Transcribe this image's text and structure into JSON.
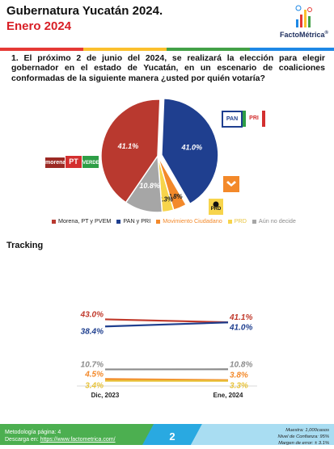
{
  "header": {
    "title": "Gubernatura Yucatán 2024.",
    "subtitle": "Enero 2024",
    "brand": "FactoMétrica",
    "brand_mark": "®"
  },
  "question": "1. El próximo 2 de junio del 2024, se realizará la elección para elegir gobernador en el estado de Yucatán, en un escenario de coaliciones conformadas de la siguiente manera ¿usted por quién votaría?",
  "badges": {
    "morena": "morena",
    "pt": "PT",
    "verde": "VERDE",
    "pan": "PAN",
    "pri": "PRI",
    "prd": "PRD"
  },
  "chart_data": [
    {
      "type": "pie",
      "slices": [
        {
          "name": "PAN y PRI",
          "value": 41.0,
          "label": "41.0%",
          "color": "#1f3f8f"
        },
        {
          "name": "Movimiento Ciudadano",
          "value": 3.8,
          "label": "3.8%",
          "color": "#f3892a"
        },
        {
          "name": "PRD",
          "value": 3.3,
          "label": "3.3%",
          "color": "#f7d44b"
        },
        {
          "name": "Aún no decide",
          "value": 10.8,
          "label": "10.8%",
          "color": "#a6a6a6"
        },
        {
          "name": "Morena, PT y PVEM",
          "value": 41.1,
          "label": "41.1%",
          "color": "#b9392f"
        }
      ],
      "legend": [
        "Morena, PT y PVEM",
        "PAN y PRI",
        "Movimiento Ciudadano",
        "PRD",
        "Aún no decide"
      ],
      "legend_position": "bottom"
    },
    {
      "type": "line",
      "title": "Tracking",
      "categories": [
        "Dic, 2023",
        "Ene, 2024"
      ],
      "series": [
        {
          "name": "Morena, PT y PVEM",
          "values": [
            43.0,
            41.1
          ],
          "labels": [
            "43.0%",
            "41.1%"
          ],
          "color": "#c0392b"
        },
        {
          "name": "PAN y PRI",
          "values": [
            38.4,
            41.0
          ],
          "labels": [
            "38.4%",
            "41.0%"
          ],
          "color": "#1f3f8f"
        },
        {
          "name": "Aún no decide",
          "values": [
            10.7,
            10.8
          ],
          "labels": [
            "10.7%",
            "10.8%"
          ],
          "color": "#8c8c8c"
        },
        {
          "name": "Movimiento Ciudadano",
          "values": [
            4.5,
            3.8
          ],
          "labels": [
            "4.5%",
            "3.8%"
          ],
          "color": "#f3892a"
        },
        {
          "name": "PRD",
          "values": [
            3.4,
            3.3
          ],
          "labels": [
            "3.4%",
            "3.3%"
          ],
          "color": "#e8c33a"
        }
      ],
      "ylim": [
        0,
        50
      ],
      "grid": false
    }
  ],
  "footer": {
    "methodology": "Metodología página: 4",
    "download_label": "Descarga en: ",
    "download_link": "https://www.factometrica.com/",
    "page": "2",
    "sample": "Muestra: 1,000casos",
    "confidence": "Nivel de Confianza: 95%",
    "margin": "Margen de error: ± 3.1%"
  },
  "colors": {
    "rule": [
      "#e53935",
      "#fbc02d",
      "#43a047",
      "#1e88e5"
    ],
    "footer": [
      "#4caf50",
      "#29a9e1",
      "#5bc0de"
    ]
  }
}
